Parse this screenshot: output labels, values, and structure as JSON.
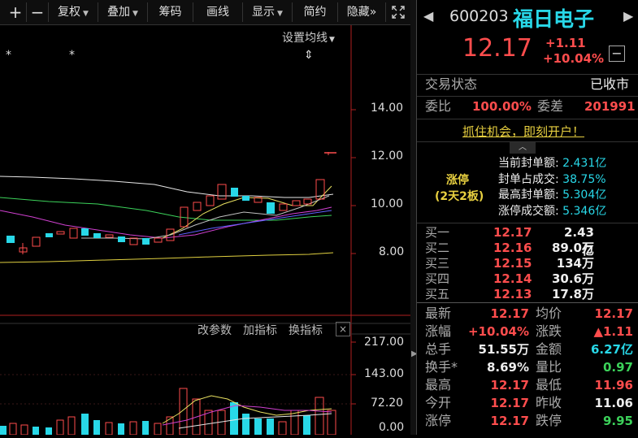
{
  "toolbar": {
    "buttons": [
      "+",
      "−",
      "复权",
      "叠加",
      "筹码",
      "画线",
      "显示",
      "简约",
      "隐藏"
    ],
    "more": "»",
    "expand_icon": "expand-icon"
  },
  "chart": {
    "ma_settings": "设置均线",
    "price_ticks": [
      "14.00",
      "12.00",
      "10.00",
      "8.00"
    ],
    "volume_ticks": [
      "217.00",
      "143.00",
      "72.20",
      "0.00"
    ],
    "volume_toolbar": [
      "改参数",
      "加指标",
      "换指标"
    ],
    "markers": [
      "*",
      "*",
      "⇕"
    ]
  },
  "quote": {
    "code": "600203",
    "name": "福日电子",
    "price": "12.17",
    "change": "+1.11",
    "change_pct": "+10.04%",
    "collapse": "−"
  },
  "status": {
    "label": "交易状态",
    "value": "已收市"
  },
  "ratio": {
    "label1": "委比",
    "value1": "100.00%",
    "label2": "委差",
    "value2": "201991"
  },
  "promo": "抓住机会，即刻开户！",
  "limit": {
    "title": "涨停",
    "sub": "(2天2板)",
    "lines": [
      {
        "label": "当前封单额:",
        "value": "2.431亿"
      },
      {
        "label": "封单占成交:",
        "value": "38.75%"
      },
      {
        "label": "最高封单额:",
        "value": "5.304亿"
      },
      {
        "label": "涨停成交额:",
        "value": "5.346亿"
      }
    ]
  },
  "bids": [
    {
      "label": "买一",
      "price": "12.17",
      "vol": "2.43亿"
    },
    {
      "label": "买二",
      "price": "12.16",
      "vol": "89.0万"
    },
    {
      "label": "买三",
      "price": "12.15",
      "vol": "134万"
    },
    {
      "label": "买四",
      "price": "12.14",
      "vol": "30.6万"
    },
    {
      "label": "买五",
      "price": "12.13",
      "vol": "17.8万"
    }
  ],
  "stats": [
    {
      "l1": "最新",
      "v1": "12.17",
      "c1": "red",
      "l2": "均价",
      "v2": "12.17",
      "c2": "red"
    },
    {
      "l1": "涨幅",
      "v1": "+10.04%",
      "c1": "red",
      "l2": "涨跌",
      "v2": "▲1.11",
      "c2": "red"
    },
    {
      "l1": "总手",
      "v1": "51.55万",
      "c1": "white",
      "l2": "金额",
      "v2": "6.27亿",
      "c2": "cyan"
    },
    {
      "l1": "换手*",
      "v1": "8.69%",
      "c1": "white",
      "l2": "量比",
      "v2": "0.97",
      "c2": "green"
    },
    {
      "l1": "最高",
      "v1": "12.17",
      "c1": "red",
      "l2": "最低",
      "v2": "11.96",
      "c2": "red"
    },
    {
      "l1": "今开",
      "v1": "12.17",
      "c1": "red",
      "l2": "昨收",
      "v2": "11.06",
      "c2": "white"
    },
    {
      "l1": "涨停",
      "v1": "12.17",
      "c1": "red",
      "l2": "跌停",
      "v2": "9.95",
      "c2": "green"
    }
  ],
  "colors": {
    "up": "#ff4d4d",
    "down": "#28d8e8",
    "accent": "#28d8e8"
  }
}
